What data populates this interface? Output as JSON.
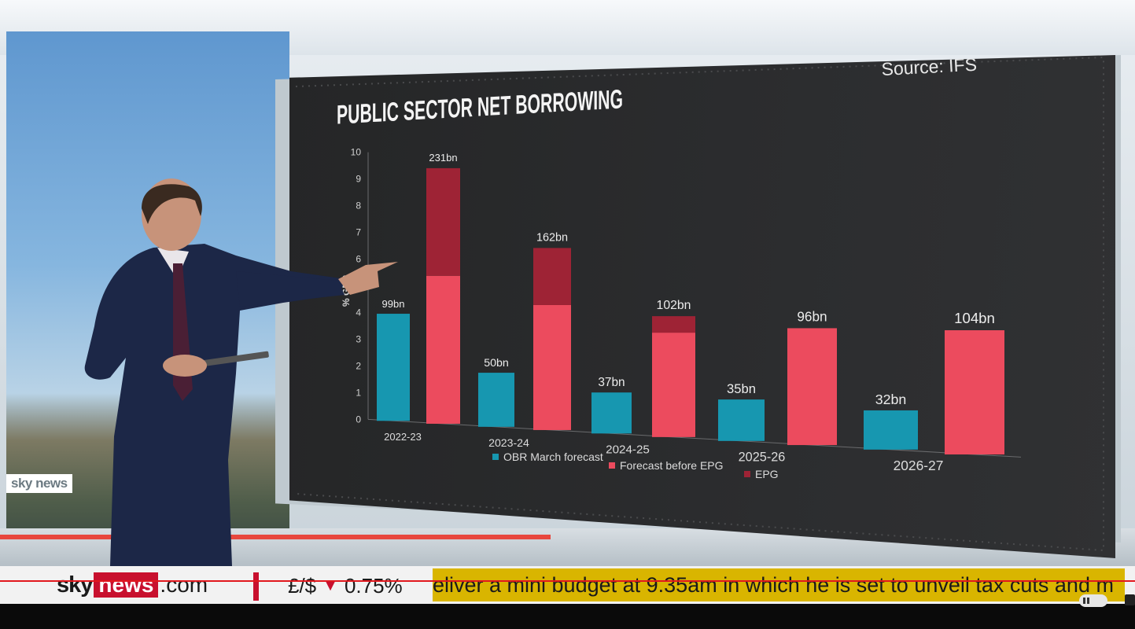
{
  "graphic": {
    "title": "PUBLIC SECTOR NET BORROWING",
    "source": "Source: IFS",
    "y_axis_label": "% GDP"
  },
  "chart_data": {
    "type": "bar",
    "title": "PUBLIC SECTOR NET BORROWING",
    "ylabel": "% GDP",
    "ylim": [
      0,
      10
    ],
    "y_ticks": [
      0,
      1,
      2,
      3,
      4,
      5,
      6,
      7,
      8,
      9,
      10
    ],
    "categories": [
      "2022-23",
      "2023-24",
      "2024-25",
      "2025-26",
      "2026-27"
    ],
    "series": [
      {
        "name": "OBR March forecast",
        "color": "#1797b0",
        "values": [
          4.0,
          2.0,
          1.5,
          1.5,
          1.4
        ],
        "labels": [
          "99bn",
          "50bn",
          "37bn",
          "35bn",
          "32bn"
        ]
      },
      {
        "name": "Forecast before EPG",
        "color": "#ec4b5e",
        "values": [
          5.5,
          4.6,
          3.8,
          4.2,
          4.4
        ]
      },
      {
        "name": "EPG",
        "color": "#9e2335",
        "values": [
          4.0,
          2.1,
          0.6,
          0,
          0
        ]
      }
    ],
    "stack_totals": [
      "231bn",
      "162bn",
      "102bn",
      "96bn",
      "104bn"
    ],
    "legend": "bottom"
  },
  "ticker": {
    "brand_sky": "sky",
    "brand_news": "news",
    "brand_com": ".com",
    "market_label": "£/$",
    "market_arrow": "▼",
    "market_change": "0.75%",
    "headline": "eliver a mini budget at 9.35am in which he is set to unveil tax cuts and m"
  },
  "watermark": "sky news",
  "colors": {
    "obr": "#1797b0",
    "forecast": "#ec4b5e",
    "epg": "#9e2335",
    "brand_red": "#c8102e",
    "ticker_yellow": "#d9b500"
  }
}
